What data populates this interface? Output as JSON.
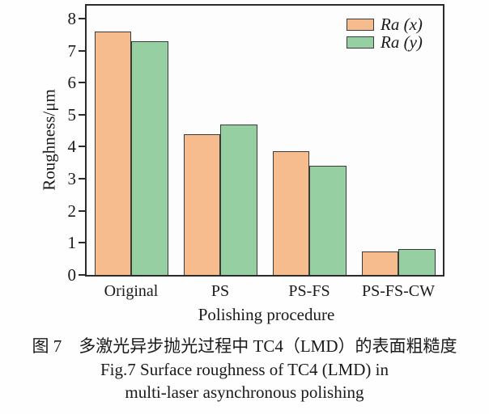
{
  "chart_data": {
    "type": "bar",
    "categories": [
      "Original",
      "PS",
      "PS-FS",
      "PS-FS-CW"
    ],
    "series": [
      {
        "name": "Ra (x)",
        "color": "#f6bc8e",
        "edge_color": "#3a3a3a",
        "values": [
          7.6,
          4.4,
          3.85,
          0.72
        ]
      },
      {
        "name": "Ra (y)",
        "color": "#95cfa2",
        "edge_color": "#3a3a3a",
        "values": [
          7.3,
          4.7,
          3.4,
          0.8
        ]
      }
    ],
    "title": "",
    "xlabel": "Polishing procedure",
    "ylabel": "Roughness/μm",
    "ylim": [
      0,
      8.4
    ],
    "yticks": [
      0,
      1,
      2,
      3,
      4,
      5,
      6,
      7,
      8
    ],
    "grid": false,
    "frame": true,
    "legend_position": "top-right"
  },
  "caption": {
    "line1": "图 7　多激光异步抛光过程中 TC4（LMD）的表面粗糙度",
    "line2": "Fig.7 Surface roughness of TC4 (LMD) in",
    "line3": "multi-laser asynchronous polishing"
  }
}
